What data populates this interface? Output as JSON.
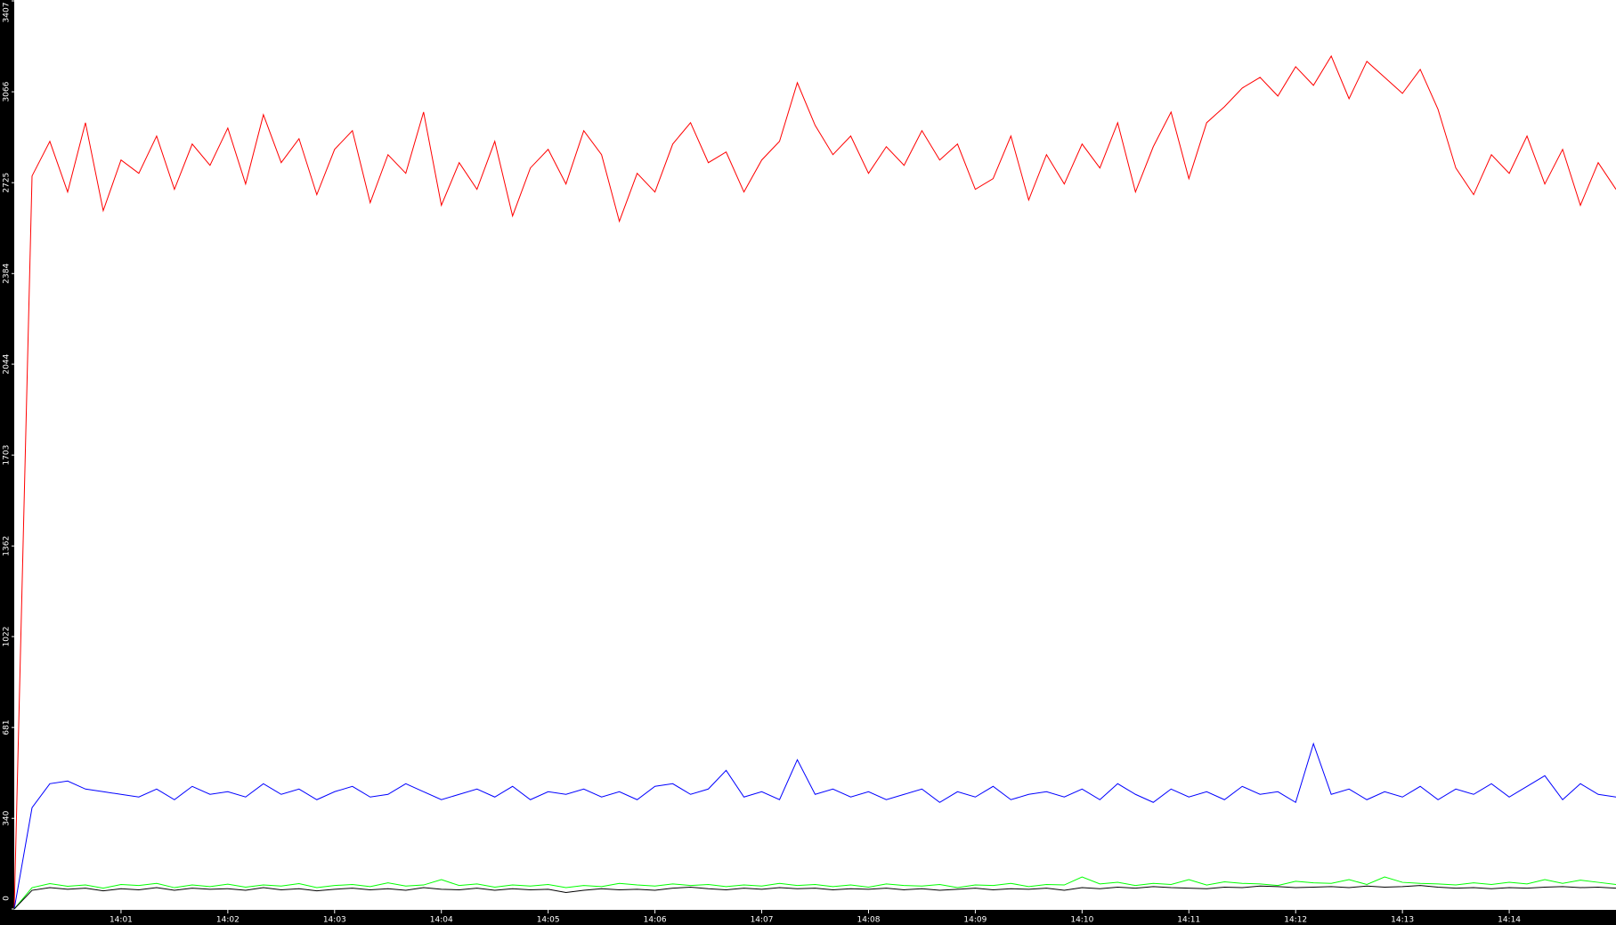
{
  "chart_data": {
    "type": "line",
    "xlim": [
      0,
      900
    ],
    "xticks": [
      {
        "value": 60,
        "label": "14:01"
      },
      {
        "value": 120,
        "label": "14:02"
      },
      {
        "value": 180,
        "label": "14:03"
      },
      {
        "value": 240,
        "label": "14:04"
      },
      {
        "value": 300,
        "label": "14:05"
      },
      {
        "value": 360,
        "label": "14:06"
      },
      {
        "value": 420,
        "label": "14:07"
      },
      {
        "value": 480,
        "label": "14:08"
      },
      {
        "value": 540,
        "label": "14:09"
      },
      {
        "value": 600,
        "label": "14:10"
      },
      {
        "value": 660,
        "label": "14:11"
      },
      {
        "value": 720,
        "label": "14:12"
      },
      {
        "value": 780,
        "label": "14:13"
      },
      {
        "value": 840,
        "label": "14:14"
      }
    ],
    "ylim": [
      0,
      3407
    ],
    "yticks": [
      0,
      340,
      681,
      1022,
      1362,
      1703,
      2044,
      2384,
      2725,
      3066,
      3407
    ],
    "x": [
      0,
      10,
      20,
      30,
      40,
      50,
      60,
      70,
      80,
      90,
      100,
      110,
      120,
      130,
      140,
      150,
      160,
      170,
      180,
      190,
      200,
      210,
      220,
      230,
      240,
      250,
      260,
      270,
      280,
      290,
      300,
      310,
      320,
      330,
      340,
      350,
      360,
      370,
      380,
      390,
      400,
      410,
      420,
      430,
      440,
      450,
      460,
      470,
      480,
      490,
      500,
      510,
      520,
      530,
      540,
      550,
      560,
      570,
      580,
      590,
      600,
      610,
      620,
      630,
      640,
      650,
      660,
      670,
      680,
      690,
      700,
      710,
      720,
      730,
      740,
      750,
      760,
      770,
      780,
      790,
      800,
      810,
      820,
      830,
      840,
      850,
      860,
      870,
      880,
      890,
      900
    ],
    "series": [
      {
        "color": "#ff0000",
        "values": [
          0,
          2750,
          2880,
          2690,
          2950,
          2620,
          2810,
          2760,
          2900,
          2700,
          2870,
          2790,
          2930,
          2720,
          2980,
          2800,
          2890,
          2680,
          2850,
          2920,
          2650,
          2830,
          2760,
          2990,
          2640,
          2800,
          2700,
          2880,
          2600,
          2780,
          2850,
          2720,
          2920,
          2830,
          2580,
          2760,
          2690,
          2870,
          2950,
          2800,
          2840,
          2690,
          2810,
          2880,
          3100,
          2940,
          2830,
          2900,
          2760,
          2860,
          2790,
          2920,
          2810,
          2870,
          2700,
          2740,
          2900,
          2660,
          2830,
          2720,
          2870,
          2780,
          2950,
          2690,
          2860,
          2990,
          2740,
          2950,
          3010,
          3080,
          3120,
          3050,
          3160,
          3090,
          3200,
          3040,
          3180,
          3120,
          3060,
          3150,
          3000,
          2780,
          2680,
          2830,
          2760,
          2900,
          2720,
          2850,
          2640,
          2800,
          2700
        ]
      },
      {
        "color": "#0000ff",
        "values": [
          0,
          380,
          470,
          480,
          450,
          440,
          430,
          420,
          450,
          410,
          460,
          430,
          440,
          420,
          470,
          430,
          450,
          410,
          440,
          460,
          420,
          430,
          470,
          440,
          410,
          430,
          450,
          420,
          460,
          410,
          440,
          430,
          450,
          420,
          440,
          410,
          460,
          470,
          430,
          450,
          520,
          420,
          440,
          410,
          560,
          430,
          450,
          420,
          440,
          410,
          430,
          450,
          400,
          440,
          420,
          460,
          410,
          430,
          440,
          420,
          450,
          410,
          470,
          430,
          400,
          450,
          420,
          440,
          410,
          460,
          430,
          440,
          400,
          620,
          430,
          450,
          410,
          440,
          420,
          460,
          410,
          450,
          430,
          470,
          420,
          460,
          500,
          410,
          470,
          430,
          420
        ]
      },
      {
        "color": "#00ff00",
        "values": [
          0,
          80,
          95,
          85,
          90,
          78,
          92,
          88,
          96,
          80,
          90,
          84,
          93,
          82,
          90,
          86,
          95,
          80,
          88,
          92,
          84,
          98,
          86,
          90,
          110,
          88,
          94,
          82,
          90,
          86,
          92,
          80,
          88,
          84,
          96,
          90,
          86,
          94,
          88,
          92,
          84,
          90,
          86,
          96,
          88,
          92,
          84,
          90,
          82,
          94,
          88,
          86,
          92,
          80,
          90,
          88,
          96,
          84,
          92,
          90,
          120,
          94,
          100,
          88,
          96,
          92,
          110,
          90,
          102,
          96,
          94,
          88,
          104,
          98,
          96,
          110,
          92,
          120,
          100,
          96,
          94,
          90,
          98,
          92,
          100,
          94,
          110,
          96,
          108,
          100,
          92
        ]
      },
      {
        "color": "#000000",
        "values": [
          0,
          70,
          80,
          74,
          78,
          68,
          76,
          72,
          80,
          70,
          78,
          74,
          76,
          70,
          80,
          72,
          76,
          68,
          74,
          78,
          72,
          76,
          70,
          80,
          74,
          72,
          78,
          70,
          76,
          72,
          74,
          62,
          70,
          76,
          72,
          74,
          70,
          78,
          82,
          76,
          72,
          78,
          74,
          80,
          76,
          78,
          72,
          76,
          74,
          78,
          72,
          76,
          70,
          74,
          78,
          72,
          76,
          74,
          78,
          70,
          80,
          76,
          82,
          78,
          84,
          80,
          78,
          76,
          82,
          80,
          86,
          84,
          80,
          82,
          84,
          80,
          86,
          82,
          84,
          88,
          82,
          78,
          80,
          76,
          80,
          78,
          82,
          84,
          80,
          82,
          78
        ]
      }
    ]
  }
}
